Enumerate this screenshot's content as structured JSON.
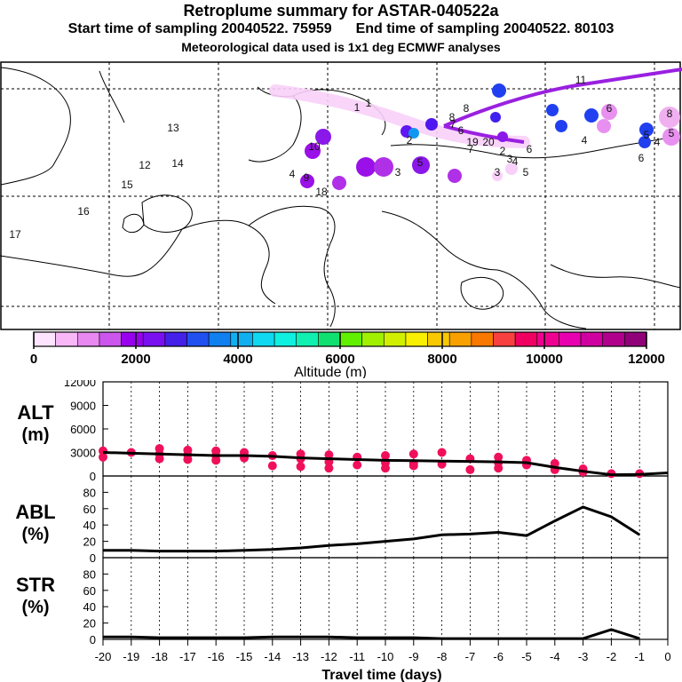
{
  "header": {
    "title": "Retroplume summary for ASTAR-040522a",
    "start_label": "Start time of sampling",
    "start_value": "20040522. 75959",
    "end_label": "End time of sampling",
    "end_value": "20040522. 80103",
    "met_line": "Meteorological data used is 1x1 deg ECMWF analyses"
  },
  "colorbar": {
    "label": "Altitude (m)",
    "ticks": [
      "0",
      "2000",
      "4000",
      "6000",
      "8000",
      "10000",
      "12000"
    ],
    "colors": [
      "#ffe4ff",
      "#f8b8f8",
      "#e888f0",
      "#cc55ee",
      "#9900ee",
      "#7a10f0",
      "#4420e8",
      "#2050f0",
      "#1080f0",
      "#10b0f0",
      "#10d8f0",
      "#10f0e0",
      "#10f0b0",
      "#10e070",
      "#60f000",
      "#a0f000",
      "#d0f000",
      "#f8f000",
      "#f8c800",
      "#f8a000",
      "#f87800",
      "#f84040",
      "#f00060",
      "#f00090",
      "#e800b0",
      "#d000a0",
      "#b0008c",
      "#900078"
    ]
  },
  "map_labels": [
    {
      "t": "1",
      "c": "#111"
    },
    {
      "t": "1",
      "c": "#111"
    },
    {
      "t": "2",
      "c": "#111"
    },
    {
      "t": "3",
      "c": "#111"
    },
    {
      "t": "4",
      "c": "#111"
    },
    {
      "t": "5",
      "c": "#111"
    },
    {
      "t": "6",
      "c": "#111"
    },
    {
      "t": "7",
      "c": "#111"
    },
    {
      "t": "8",
      "c": "#111"
    },
    {
      "t": "8",
      "c": "#111"
    },
    {
      "t": "9",
      "c": "#111"
    },
    {
      "t": "10",
      "c": "#111"
    },
    {
      "t": "11",
      "c": "#111"
    },
    {
      "t": "12",
      "c": "#111"
    },
    {
      "t": "13",
      "c": "#111"
    },
    {
      "t": "14",
      "c": "#111"
    },
    {
      "t": "15",
      "c": "#111"
    },
    {
      "t": "16",
      "c": "#111"
    },
    {
      "t": "17",
      "c": "#111"
    },
    {
      "t": "18",
      "c": "#111"
    },
    {
      "t": "19",
      "c": "#111"
    },
    {
      "t": "20",
      "c": "#111"
    },
    {
      "t": "2",
      "c": "#111"
    },
    {
      "t": "3",
      "c": "#111"
    },
    {
      "t": "4",
      "c": "#111"
    },
    {
      "t": "5",
      "c": "#111"
    },
    {
      "t": "6",
      "c": "#111"
    },
    {
      "t": "7",
      "c": "#111"
    },
    {
      "t": "4",
      "c": "#111"
    },
    {
      "t": "3",
      "c": "#111"
    },
    {
      "t": "6",
      "c": "#111"
    },
    {
      "t": "5",
      "c": "#111"
    },
    {
      "t": "4",
      "c": "#111"
    },
    {
      "t": "6",
      "c": "#111"
    },
    {
      "t": "8",
      "c": "#111"
    },
    {
      "t": "5",
      "c": "#111"
    }
  ],
  "chart_data": [
    {
      "type": "scatter+line",
      "panel": "ALT",
      "ylabel_top": "ALT",
      "ylabel_bottom": "(m)",
      "ylim": [
        0,
        12000
      ],
      "yticks": [
        "12000",
        "9000",
        "6000",
        "3000",
        "0"
      ],
      "median_line": {
        "x": [
          -20,
          -19,
          -18,
          -17,
          -16,
          -15,
          -14,
          -13,
          -12,
          -11,
          -10,
          -9,
          -8,
          -7,
          -6,
          -5,
          -4,
          -3,
          -2,
          -1,
          0
        ],
        "y": [
          3000,
          2900,
          2800,
          2700,
          2600,
          2600,
          2500,
          2300,
          2200,
          2100,
          2000,
          1950,
          1900,
          1850,
          1800,
          1700,
          1100,
          600,
          150,
          200,
          400
        ]
      },
      "clusters": {
        "x": [
          -20,
          -20,
          -19,
          -18,
          -18,
          -18,
          -17,
          -17,
          -17,
          -16,
          -16,
          -16,
          -15,
          -15,
          -14,
          -14,
          -13,
          -13,
          -13,
          -12,
          -12,
          -12,
          -11,
          -11,
          -10,
          -10,
          -10,
          -9,
          -9,
          -9,
          -8,
          -8,
          -7,
          -7,
          -6,
          -6,
          -6,
          -5,
          -5,
          -4,
          -4,
          -3,
          -3,
          -2,
          -1
        ],
        "y": [
          3200,
          2400,
          3000,
          3500,
          2800,
          2200,
          3300,
          2700,
          2100,
          3200,
          2600,
          2000,
          3000,
          2300,
          2600,
          1300,
          2800,
          2200,
          1200,
          2700,
          1800,
          1000,
          2400,
          1400,
          2600,
          1700,
          1000,
          2800,
          1600,
          1300,
          3000,
          1500,
          2200,
          800,
          2400,
          1700,
          1000,
          2000,
          1400,
          1600,
          800,
          900,
          500,
          300,
          300
        ],
        "color": "#f0105a"
      }
    },
    {
      "type": "line",
      "panel": "ABL",
      "ylabel_top": "ABL",
      "ylabel_bottom": "(%)",
      "ylim": [
        0,
        100
      ],
      "yticks": [
        "80",
        "60",
        "40",
        "20",
        "0"
      ],
      "x": [
        -20,
        -19,
        -18,
        -17,
        -16,
        -15,
        -14,
        -13,
        -12,
        -11,
        -10,
        -9,
        -8,
        -7,
        -6,
        -5,
        -4,
        -3,
        -2,
        -1
      ],
      "y": [
        9,
        9,
        8,
        8,
        8,
        9,
        10,
        12,
        15,
        17,
        20,
        23,
        28,
        29,
        31,
        27,
        45,
        62,
        50,
        28
      ]
    },
    {
      "type": "line",
      "panel": "STR",
      "ylabel_top": "STR",
      "ylabel_bottom": "(%)",
      "ylim": [
        0,
        100
      ],
      "yticks": [
        "80",
        "60",
        "40",
        "20",
        "0"
      ],
      "x": [
        -20,
        -19,
        -18,
        -17,
        -16,
        -15,
        -14,
        -13,
        -12,
        -11,
        -10,
        -9,
        -8,
        -7,
        -6,
        -5,
        -4,
        -3,
        -2,
        -1
      ],
      "y": [
        3,
        3,
        2,
        2,
        2,
        2,
        3,
        3,
        3,
        2,
        2,
        2,
        1,
        1,
        1,
        1,
        1,
        1,
        12,
        1
      ]
    }
  ],
  "xaxis": {
    "ticks": [
      "-20",
      "-19",
      "-18",
      "-17",
      "-16",
      "-15",
      "-14",
      "-13",
      "-12",
      "-11",
      "-10",
      "-9",
      "-8",
      "-7",
      "-6",
      "-5",
      "-4",
      "-3",
      "-2",
      "-1",
      "0"
    ],
    "title": "Travel time (days)"
  }
}
